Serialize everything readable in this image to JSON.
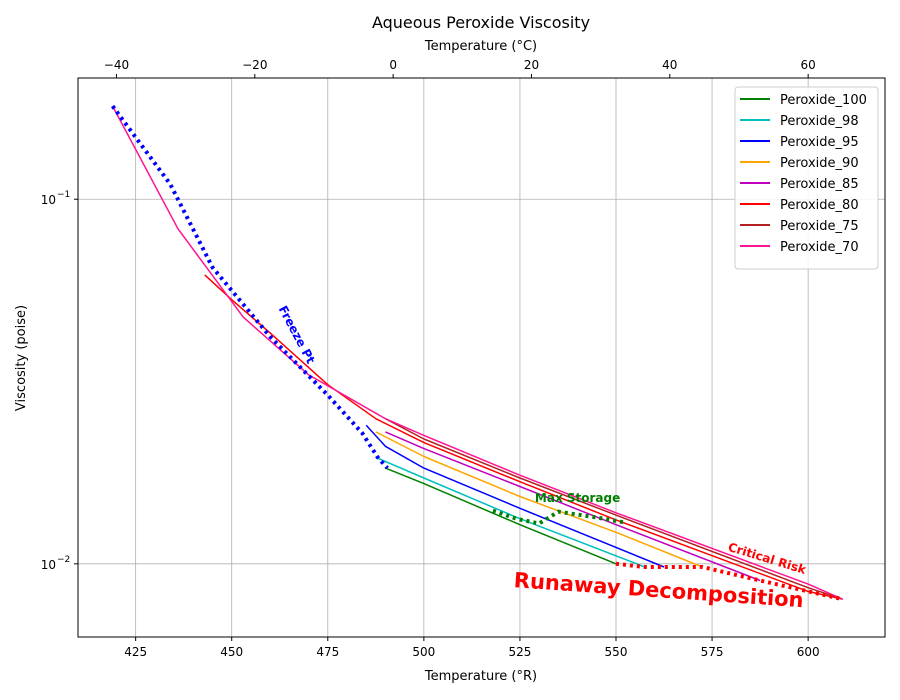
{
  "chart_data": {
    "type": "line",
    "title": "Aqueous Peroxide Viscosity",
    "xlabel": "Temperature ($^\\circ$R)",
    "xlabel_top": "Temperature ($^\\circ$C)",
    "ylabel": "Viscosity (poise)",
    "xlim": [
      410,
      620
    ],
    "xlim_top": [
      -45.56,
      71.11
    ],
    "ylim": [
      0.0063,
      0.215
    ],
    "yscale": "log",
    "grid": true,
    "legend_position": "top-right",
    "x_ticks": [
      "425",
      "450",
      "475",
      "500",
      "525",
      "550",
      "575",
      "600"
    ],
    "x_top_ticks": [
      "−40",
      "−20",
      "0",
      "20",
      "40",
      "60"
    ],
    "y_ticks": [
      {
        "value": 0.1,
        "base": "10",
        "exp": "−1"
      },
      {
        "value": 0.01,
        "base": "10",
        "exp": "−2"
      }
    ],
    "series": [
      {
        "name": "Peroxide_100",
        "color": "#008000",
        "x": [
          490.0,
          500.0,
          525.0,
          550.0
        ],
        "y": [
          0.0183,
          0.0166,
          0.0128,
          0.01
        ]
      },
      {
        "name": "Peroxide_98",
        "color": "#00bfbf",
        "x": [
          487.5,
          500.0,
          525.0,
          557.5
        ],
        "y": [
          0.0196,
          0.0172,
          0.0133,
          0.0098
        ]
      },
      {
        "name": "Peroxide_95",
        "color": "#0000ff",
        "x": [
          485.0,
          490.0,
          500.0,
          525.0,
          562.5
        ],
        "y": [
          0.024,
          0.021,
          0.0183,
          0.0142,
          0.0098
        ]
      },
      {
        "name": "Peroxide_90",
        "color": "#ffa500",
        "x": [
          487.5,
          500.0,
          525.0,
          550.0,
          572.5
        ],
        "y": [
          0.023,
          0.0197,
          0.0153,
          0.0122,
          0.0098
        ]
      },
      {
        "name": "Peroxide_85",
        "color": "#bf00bf",
        "x": [
          490.0,
          500.0,
          525.0,
          550.0,
          587.5
        ],
        "y": [
          0.023,
          0.0207,
          0.0163,
          0.0128,
          0.009
        ]
      },
      {
        "name": "Peroxide_80",
        "color": "#ff0000",
        "x": [
          443.0,
          450.0,
          460.0,
          475.0,
          487.5,
          500.0,
          525.0,
          550.0,
          600.0,
          609.0
        ],
        "y": [
          0.062,
          0.053,
          0.043,
          0.031,
          0.025,
          0.0215,
          0.0168,
          0.0132,
          0.0084,
          0.008
        ]
      },
      {
        "name": "Peroxide_75",
        "color": "#b22222",
        "x": [
          490.0,
          500.0,
          525.0,
          550.0,
          600.0,
          609.0
        ],
        "y": [
          0.025,
          0.022,
          0.0172,
          0.0136,
          0.0086,
          0.008
        ]
      },
      {
        "name": "Peroxide_70",
        "color": "#ff1493",
        "x": [
          419.0,
          436.0,
          453.0,
          470.0,
          490.0,
          500.0,
          525.0,
          550.0,
          600.0,
          609.0
        ],
        "y": [
          0.18,
          0.083,
          0.0475,
          0.033,
          0.025,
          0.0225,
          0.0175,
          0.0138,
          0.0088,
          0.008
        ]
      }
    ],
    "boundaries": [
      {
        "name": "Freeze Pt",
        "color": "#0000ff",
        "x": [
          419.0,
          434.0,
          445.0,
          460.0,
          475.0,
          484.0,
          488.0,
          490.5
        ],
        "y": [
          0.18,
          0.11,
          0.065,
          0.042,
          0.029,
          0.0228,
          0.0196,
          0.0183
        ]
      },
      {
        "name": "Max Storage",
        "color": "#008000",
        "x": [
          518.0,
          524.0,
          530.0,
          535.0,
          545.0,
          552.0
        ],
        "y": [
          0.014,
          0.0133,
          0.0129,
          0.0139,
          0.0134,
          0.013
        ]
      },
      {
        "name": "Critical Risk",
        "color": "#ff0000",
        "x": [
          550.0,
          557.5,
          562.5,
          572.5,
          587.5,
          609.0
        ],
        "y": [
          0.01,
          0.0098,
          0.0098,
          0.0098,
          0.009,
          0.008
        ]
      }
    ],
    "annotations": [
      {
        "text": "Freeze Pt",
        "color": "#0000ff",
        "x": 466.0,
        "y": 0.042,
        "rotation": 62,
        "weight": "bold",
        "size": 12
      },
      {
        "text": "Max Storage",
        "color": "#008000",
        "x": 540.0,
        "y": 0.0148,
        "rotation": 0,
        "weight": "bold",
        "size": 12
      },
      {
        "text": "Critical Risk",
        "color": "#ff0000",
        "x": 589.0,
        "y": 0.0101,
        "rotation": 17,
        "weight": "bold",
        "size": 12
      },
      {
        "text": "Runaway Decomposition",
        "color": "#ff0000",
        "x": 561.0,
        "y": 0.0081,
        "rotation": 4,
        "weight": "bold",
        "size": 21
      }
    ]
  }
}
